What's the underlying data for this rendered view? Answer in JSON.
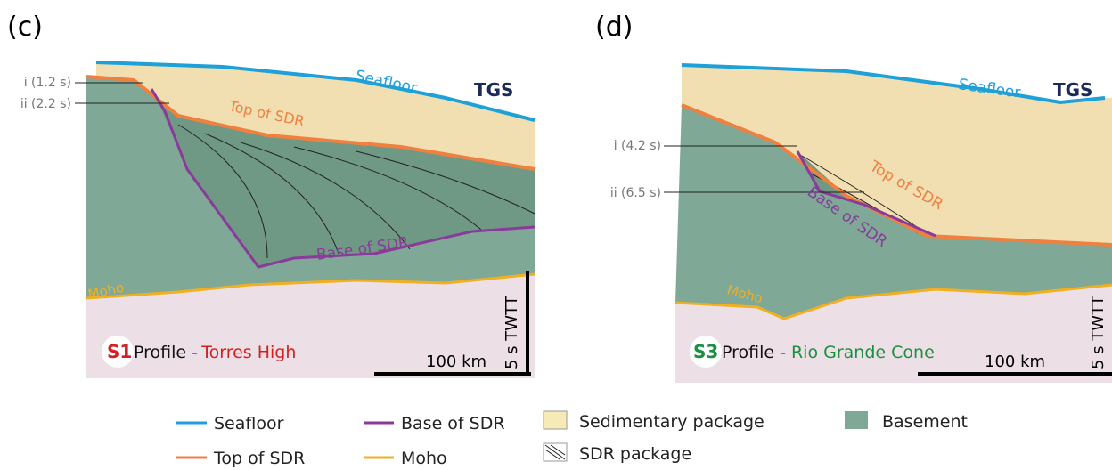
{
  "panels": [
    {
      "label": "(c)",
      "marker_i": "i (1.2 s)",
      "marker_ii": "ii (2.2 s)",
      "seafloor": "Seafloor",
      "logo": "TGS",
      "top_of_sdr": "Top of SDR",
      "base_of_sdr": "Base of SDR",
      "moho": "Moho",
      "profile_id": "S1",
      "profile_word": "Profile -",
      "location": "Torres High",
      "scale_horizontal": "100 km",
      "scale_vertical": "5 s TWTT"
    },
    {
      "label": "(d)",
      "marker_i": "i (4.2 s)",
      "marker_ii": "ii (6.5 s)",
      "seafloor": "Seafloor",
      "logo": "TGS",
      "top_of_sdr": "Top of SDR",
      "base_of_sdr": "Base of SDR",
      "moho": "Moho",
      "profile_id": "S3",
      "profile_word": "Profile -",
      "location": "Rio Grande Cone",
      "scale_horizontal": "100 km",
      "scale_vertical": "5 s TWTT"
    }
  ],
  "legend": {
    "lines": [
      "Seafloor",
      "Top of SDR",
      "Base of SDR",
      "Moho"
    ],
    "fills": [
      "Sedimentary package",
      "SDR package",
      "Basement"
    ]
  }
}
